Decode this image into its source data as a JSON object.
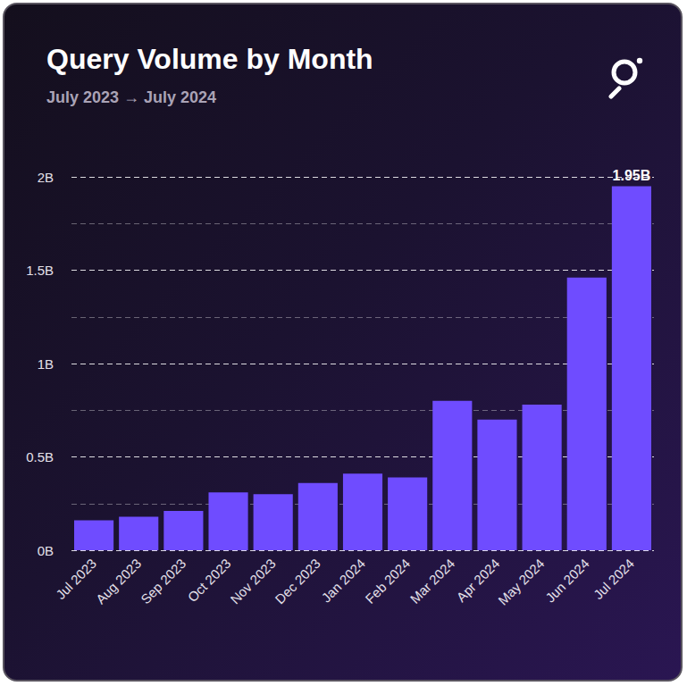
{
  "chart_data": {
    "type": "bar",
    "title": "Query Volume by Month",
    "subtitle": "July 2023 → July 2024",
    "categories": [
      "Jul 2023",
      "Aug 2023",
      "Sep 2023",
      "Oct 2023",
      "Nov 2023",
      "Dec 2023",
      "Jan 2024",
      "Feb 2024",
      "Mar 2024",
      "Apr 2024",
      "May 2024",
      "Jun 2024",
      "Jul 2024"
    ],
    "values": [
      0.16,
      0.18,
      0.21,
      0.31,
      0.3,
      0.36,
      0.41,
      0.39,
      0.8,
      0.7,
      0.78,
      1.46,
      1.95
    ],
    "color": "#6f4cff",
    "ylim": [
      0,
      2
    ],
    "yticks": [
      {
        "value": 0,
        "label": "0B"
      },
      {
        "value": 0.5,
        "label": "0.5B"
      },
      {
        "value": 1,
        "label": "1B"
      },
      {
        "value": 1.5,
        "label": "1.5B"
      },
      {
        "value": 2,
        "label": "2B"
      }
    ],
    "grid": true,
    "annotations": [
      {
        "text": "1.95B",
        "category": "Jul 2024",
        "value": 1.95
      }
    ]
  }
}
